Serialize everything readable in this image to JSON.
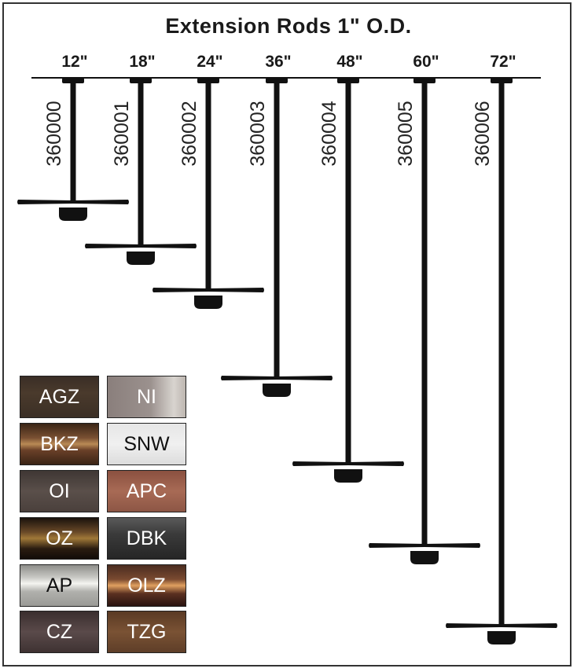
{
  "title": "Extension Rods 1\" O.D.",
  "rods": [
    {
      "size": "12\"",
      "code": "360000"
    },
    {
      "size": "18\"",
      "code": "360001"
    },
    {
      "size": "24\"",
      "code": "360002"
    },
    {
      "size": "36\"",
      "code": "360003"
    },
    {
      "size": "48\"",
      "code": "360004"
    },
    {
      "size": "60\"",
      "code": "360005"
    },
    {
      "size": "72\"",
      "code": "360006"
    }
  ],
  "finishes": [
    {
      "code": "AGZ",
      "text_color": "#ffffff",
      "bg": "linear-gradient(180deg,#3a2e26,#4a3a2c 40%,#3b2f25)"
    },
    {
      "code": "NI",
      "text_color": "#ffffff",
      "bg": "linear-gradient(90deg,#8a7f7c,#9b918e 55%,#d8d4cf 85%,#bdb6b0)"
    },
    {
      "code": "BKZ",
      "text_color": "#ffffff",
      "bg": "linear-gradient(180deg,#3a2516,#7a5032 35%,#b98a55 50%,#6a4028 65%,#3a2416)"
    },
    {
      "code": "SNW",
      "text_color": "#111111",
      "bg": "linear-gradient(180deg,#e6e6e6,#f0f0f0 50%,#dcdcdc)"
    },
    {
      "code": "OI",
      "text_color": "#ffffff",
      "bg": "linear-gradient(180deg,#3f3734,#5a4f4a 50%,#4a403c)"
    },
    {
      "code": "APC",
      "text_color": "#ffffff",
      "bg": "linear-gradient(180deg,#8a5040,#a86a55 50%,#8c5645)"
    },
    {
      "code": "OZ",
      "text_color": "#ffffff",
      "bg": "linear-gradient(180deg,#1a120c,#6a4a28 35%,#a07838 50%,#2a1c10 75%,#120c08)"
    },
    {
      "code": "DBK",
      "text_color": "#ffffff",
      "bg": "linear-gradient(180deg,#5a5a5a,#3a3a3a 40%,#262626)"
    },
    {
      "code": "AP",
      "text_color": "#111111",
      "bg": "linear-gradient(180deg,#8e8e8a,#c8c8c4 30%,#f4f4f0 45%,#b0b0ac 65%,#9a9a96)"
    },
    {
      "code": "OLZ",
      "text_color": "#ffffff",
      "bg": "linear-gradient(180deg,#4a2c20,#7a4a30 35%,#e0a060 50%,#5a3020 70%,#2a1410)"
    },
    {
      "code": "CZ",
      "text_color": "#ffffff",
      "bg": "linear-gradient(180deg,#3a2e2e,#5a4a4a 50%,#3e3232)"
    },
    {
      "code": "TZG",
      "text_color": "#ffffff",
      "bg": "linear-gradient(180deg,#5a3a24,#7a5234 50%,#5e3e28)"
    }
  ]
}
